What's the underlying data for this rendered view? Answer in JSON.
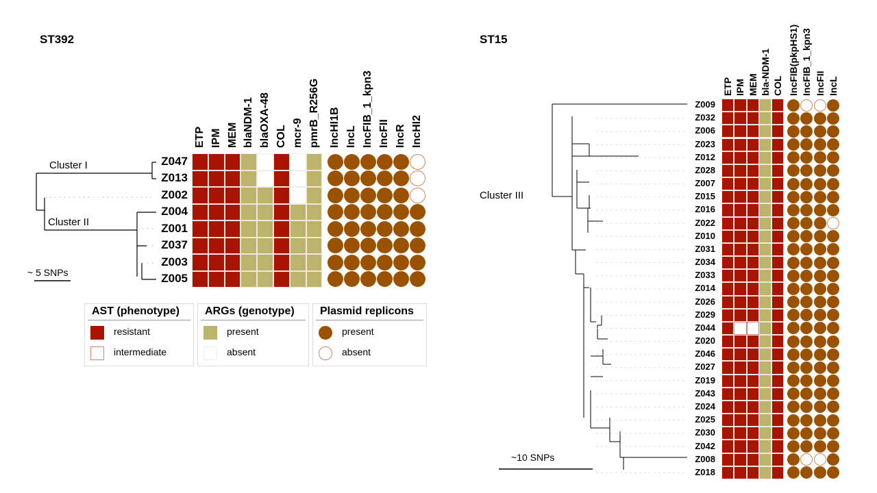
{
  "colors": {
    "resistant": "#a81400",
    "intermediate_border": "#e08070",
    "present_gene": "#bcb46c",
    "absent": "#ffffff",
    "plasmid": "#9a5200",
    "plasmid_absent_border": "#c88a5a"
  },
  "st392": {
    "title": "ST392",
    "columns_ast": [
      "ETP",
      "IPM",
      "MEM"
    ],
    "columns_arg": [
      "blaNDM-1",
      "blaOXA-48",
      "COL",
      "mcr-9",
      "pmrB_R256G"
    ],
    "columns_plasmid": [
      "IncHI1B",
      "IncL",
      "IncFIB_1_kpn3",
      "IncFII",
      "IncR",
      "IncHI2"
    ],
    "cluster_labels": [
      "Cluster I",
      "Cluster II"
    ],
    "scale_label": "~ 5 SNPs",
    "rows": [
      {
        "id": "Z047",
        "cells": [
          "R",
          "R",
          "R",
          "P",
          "A",
          "R",
          "A",
          "P"
        ],
        "plasmids": [
          1,
          1,
          1,
          1,
          1,
          0
        ]
      },
      {
        "id": "Z013",
        "cells": [
          "R",
          "R",
          "R",
          "P",
          "A",
          "R",
          "A",
          "P"
        ],
        "plasmids": [
          1,
          1,
          1,
          1,
          1,
          0
        ]
      },
      {
        "id": "Z002",
        "cells": [
          "R",
          "R",
          "R",
          "P",
          "P",
          "R",
          "A",
          "P"
        ],
        "plasmids": [
          1,
          1,
          1,
          1,
          1,
          0
        ]
      },
      {
        "id": "Z004",
        "cells": [
          "R",
          "R",
          "R",
          "P",
          "P",
          "R",
          "P",
          "P"
        ],
        "plasmids": [
          1,
          1,
          1,
          1,
          1,
          1
        ]
      },
      {
        "id": "Z001",
        "cells": [
          "R",
          "R",
          "R",
          "P",
          "P",
          "R",
          "P",
          "P"
        ],
        "plasmids": [
          1,
          1,
          1,
          1,
          1,
          1
        ]
      },
      {
        "id": "Z037",
        "cells": [
          "R",
          "R",
          "R",
          "P",
          "P",
          "R",
          "P",
          "P"
        ],
        "plasmids": [
          1,
          1,
          1,
          1,
          1,
          1
        ]
      },
      {
        "id": "Z003",
        "cells": [
          "R",
          "R",
          "R",
          "P",
          "P",
          "R",
          "P",
          "P"
        ],
        "plasmids": [
          1,
          1,
          1,
          1,
          1,
          1
        ]
      },
      {
        "id": "Z005",
        "cells": [
          "R",
          "R",
          "R",
          "P",
          "P",
          "R",
          "P",
          "P"
        ],
        "plasmids": [
          1,
          1,
          1,
          1,
          1,
          1
        ]
      }
    ]
  },
  "st15": {
    "title": "ST15",
    "columns": [
      "ETP",
      "IPM",
      "MEM",
      "bla-NDM-1",
      "COL"
    ],
    "columns_plasmid": [
      "IncFIB(pkpHS1)",
      "IncFIB_1_kpn3",
      "IncFII",
      "IncL"
    ],
    "cluster_label": "Cluster III",
    "scale_label": "~10 SNPs",
    "rows": [
      {
        "id": "Z009",
        "cells": [
          "R",
          "R",
          "R",
          "P",
          "R"
        ],
        "plasmids": [
          1,
          0,
          0,
          1
        ]
      },
      {
        "id": "Z032",
        "cells": [
          "R",
          "R",
          "R",
          "P",
          "R"
        ],
        "plasmids": [
          1,
          1,
          1,
          1
        ]
      },
      {
        "id": "Z006",
        "cells": [
          "R",
          "R",
          "R",
          "P",
          "R"
        ],
        "plasmids": [
          1,
          1,
          1,
          1
        ]
      },
      {
        "id": "Z023",
        "cells": [
          "R",
          "R",
          "R",
          "P",
          "R"
        ],
        "plasmids": [
          1,
          1,
          1,
          1
        ]
      },
      {
        "id": "Z012",
        "cells": [
          "R",
          "R",
          "R",
          "P",
          "R"
        ],
        "plasmids": [
          1,
          1,
          1,
          1
        ]
      },
      {
        "id": "Z028",
        "cells": [
          "R",
          "R",
          "R",
          "P",
          "R"
        ],
        "plasmids": [
          1,
          1,
          1,
          1
        ]
      },
      {
        "id": "Z007",
        "cells": [
          "R",
          "R",
          "R",
          "P",
          "R"
        ],
        "plasmids": [
          1,
          1,
          1,
          1
        ]
      },
      {
        "id": "Z015",
        "cells": [
          "R",
          "R",
          "R",
          "P",
          "R"
        ],
        "plasmids": [
          1,
          1,
          1,
          1
        ]
      },
      {
        "id": "Z016",
        "cells": [
          "R",
          "R",
          "R",
          "P",
          "R"
        ],
        "plasmids": [
          1,
          1,
          1,
          1
        ]
      },
      {
        "id": "Z022",
        "cells": [
          "R",
          "R",
          "R",
          "P",
          "R"
        ],
        "plasmids": [
          1,
          1,
          1,
          0
        ]
      },
      {
        "id": "Z010",
        "cells": [
          "R",
          "R",
          "R",
          "P",
          "R"
        ],
        "plasmids": [
          1,
          1,
          1,
          1
        ]
      },
      {
        "id": "Z031",
        "cells": [
          "R",
          "R",
          "R",
          "P",
          "R"
        ],
        "plasmids": [
          1,
          1,
          1,
          1
        ]
      },
      {
        "id": "Z034",
        "cells": [
          "R",
          "R",
          "R",
          "P",
          "R"
        ],
        "plasmids": [
          1,
          1,
          1,
          1
        ]
      },
      {
        "id": "Z033",
        "cells": [
          "R",
          "R",
          "R",
          "P",
          "R"
        ],
        "plasmids": [
          1,
          1,
          1,
          1
        ]
      },
      {
        "id": "Z014",
        "cells": [
          "R",
          "R",
          "R",
          "P",
          "R"
        ],
        "plasmids": [
          1,
          1,
          1,
          1
        ]
      },
      {
        "id": "Z026",
        "cells": [
          "R",
          "R",
          "R",
          "P",
          "R"
        ],
        "plasmids": [
          1,
          1,
          1,
          1
        ]
      },
      {
        "id": "Z029",
        "cells": [
          "R",
          "R",
          "R",
          "P",
          "R"
        ],
        "plasmids": [
          1,
          1,
          1,
          1
        ]
      },
      {
        "id": "Z044",
        "cells": [
          "R",
          "I",
          "I",
          "P",
          "R"
        ],
        "plasmids": [
          1,
          1,
          1,
          1
        ]
      },
      {
        "id": "Z020",
        "cells": [
          "R",
          "R",
          "R",
          "P",
          "R"
        ],
        "plasmids": [
          1,
          1,
          1,
          1
        ]
      },
      {
        "id": "Z046",
        "cells": [
          "R",
          "R",
          "R",
          "P",
          "R"
        ],
        "plasmids": [
          1,
          1,
          1,
          1
        ]
      },
      {
        "id": "Z027",
        "cells": [
          "R",
          "R",
          "R",
          "P",
          "R"
        ],
        "plasmids": [
          1,
          1,
          1,
          1
        ]
      },
      {
        "id": "Z019",
        "cells": [
          "R",
          "R",
          "R",
          "P",
          "R"
        ],
        "plasmids": [
          1,
          1,
          1,
          1
        ]
      },
      {
        "id": "Z043",
        "cells": [
          "R",
          "R",
          "R",
          "P",
          "R"
        ],
        "plasmids": [
          1,
          1,
          1,
          1
        ]
      },
      {
        "id": "Z024",
        "cells": [
          "R",
          "R",
          "R",
          "P",
          "R"
        ],
        "plasmids": [
          1,
          1,
          1,
          1
        ]
      },
      {
        "id": "Z025",
        "cells": [
          "R",
          "R",
          "R",
          "P",
          "R"
        ],
        "plasmids": [
          1,
          1,
          1,
          1
        ]
      },
      {
        "id": "Z030",
        "cells": [
          "R",
          "R",
          "R",
          "P",
          "R"
        ],
        "plasmids": [
          1,
          1,
          1,
          1
        ]
      },
      {
        "id": "Z042",
        "cells": [
          "R",
          "R",
          "R",
          "P",
          "R"
        ],
        "plasmids": [
          1,
          1,
          1,
          1
        ]
      },
      {
        "id": "Z008",
        "cells": [
          "R",
          "R",
          "R",
          "P",
          "R"
        ],
        "plasmids": [
          1,
          0,
          0,
          1
        ]
      },
      {
        "id": "Z018",
        "cells": [
          "R",
          "R",
          "R",
          "P",
          "R"
        ],
        "plasmids": [
          1,
          1,
          1,
          1
        ]
      }
    ]
  },
  "legend": {
    "ast": {
      "title": "AST (phenotype)",
      "items": [
        "resistant",
        "intermediate"
      ]
    },
    "args": {
      "title": "ARGs (genotype)",
      "items": [
        "present",
        "absent"
      ]
    },
    "plasmid": {
      "title": "Plasmid replicons",
      "items": [
        "present",
        "absent"
      ]
    }
  }
}
